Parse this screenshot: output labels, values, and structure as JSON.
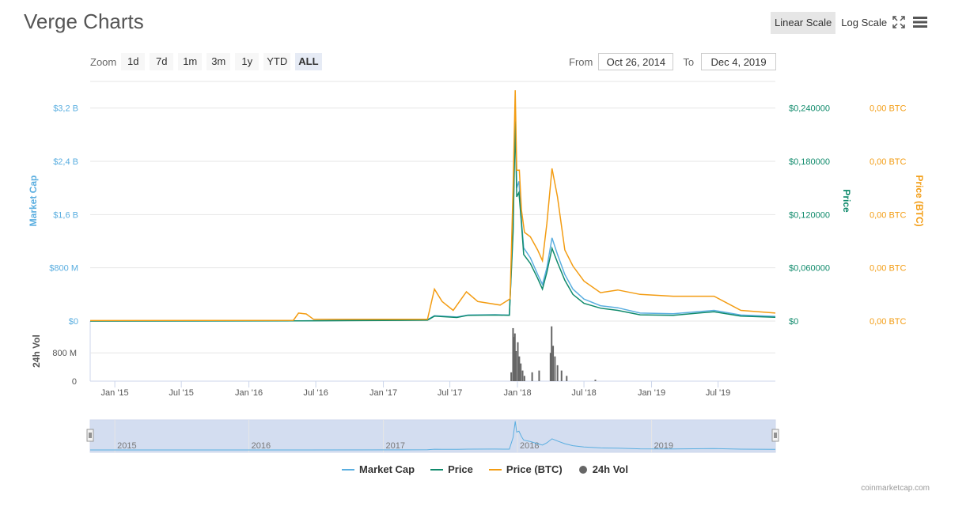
{
  "header": {
    "title": "Verge Charts",
    "linear_scale": "Linear Scale",
    "log_scale": "Log Scale"
  },
  "zoom": {
    "label": "Zoom",
    "buttons": [
      "1d",
      "7d",
      "1m",
      "3m",
      "1y",
      "YTD",
      "ALL"
    ],
    "active": "ALL"
  },
  "range": {
    "from_label": "From",
    "from_value": "Oct 26, 2014",
    "to_label": "To",
    "to_value": "Dec 4, 2019"
  },
  "colors": {
    "market_cap": "#5aaee0",
    "price": "#0f8a6b",
    "price_btc": "#f39c12",
    "volume": "#666666",
    "navigator_fill": "#d3ddf0"
  },
  "icons": {
    "fullscreen": "fullscreen-icon",
    "menu": "hamburger-menu-icon"
  },
  "chart_data": {
    "type": "line",
    "x_axis": {
      "ticks": [
        "Jan '15",
        "Jul '15",
        "Jan '16",
        "Jul '16",
        "Jan '17",
        "Jul '17",
        "Jan '18",
        "Jul '18",
        "Jan '19",
        "Jul '19"
      ],
      "range": [
        "2014-10-26",
        "2019-12-04"
      ]
    },
    "y_axes": {
      "market_cap": {
        "title": "Market Cap",
        "ticks": [
          "$0",
          "$800 M",
          "$1,6 B",
          "$2,4 B",
          "$3,2 B"
        ],
        "range": [
          0,
          3600000000
        ]
      },
      "price": {
        "title": "Price",
        "ticks": [
          "$0",
          "$0,060000",
          "$0,120000",
          "$0,180000",
          "$0,240000"
        ],
        "range": [
          0,
          0.27
        ]
      },
      "price_btc": {
        "title": "Price (BTC)",
        "ticks": [
          "0,00 BTC",
          "0,00 BTC",
          "0,00 BTC",
          "0,00 BTC",
          "0,00 BTC"
        ]
      },
      "volume": {
        "title": "24h Vol",
        "ticks": [
          "0",
          "800 M"
        ],
        "range": [
          0,
          1700000000
        ]
      }
    },
    "series": [
      {
        "name": "Market Cap",
        "key": "market_cap",
        "points": [
          [
            "2014-10-26",
            0
          ],
          [
            "2016-05-15",
            2000000
          ],
          [
            "2017-05-01",
            20000000
          ],
          [
            "2017-05-20",
            80000000
          ],
          [
            "2017-06-10",
            75000000
          ],
          [
            "2017-07-20",
            60000000
          ],
          [
            "2017-08-20",
            90000000
          ],
          [
            "2017-11-01",
            95000000
          ],
          [
            "2017-12-10",
            90000000
          ],
          [
            "2017-12-20",
            1400000000
          ],
          [
            "2017-12-26",
            3200000000
          ],
          [
            "2017-12-30",
            2000000000
          ],
          [
            "2018-01-05",
            2100000000
          ],
          [
            "2018-01-12",
            1500000000
          ],
          [
            "2018-01-18",
            1100000000
          ],
          [
            "2018-02-05",
            950000000
          ],
          [
            "2018-02-25",
            700000000
          ],
          [
            "2018-03-10",
            550000000
          ],
          [
            "2018-03-22",
            800000000
          ],
          [
            "2018-04-05",
            1250000000
          ],
          [
            "2018-04-20",
            1000000000
          ],
          [
            "2018-05-10",
            700000000
          ],
          [
            "2018-06-01",
            480000000
          ],
          [
            "2018-07-01",
            330000000
          ],
          [
            "2018-08-15",
            230000000
          ],
          [
            "2018-10-01",
            200000000
          ],
          [
            "2018-12-01",
            120000000
          ],
          [
            "2019-03-01",
            110000000
          ],
          [
            "2019-06-20",
            160000000
          ],
          [
            "2019-09-01",
            90000000
          ],
          [
            "2019-12-04",
            70000000
          ]
        ]
      },
      {
        "name": "Price",
        "key": "price",
        "points": [
          [
            "2014-10-26",
            0
          ],
          [
            "2016-05-15",
            0.0002
          ],
          [
            "2017-05-01",
            0.001
          ],
          [
            "2017-05-20",
            0.0055
          ],
          [
            "2017-06-10",
            0.005
          ],
          [
            "2017-07-20",
            0.004
          ],
          [
            "2017-08-20",
            0.0065
          ],
          [
            "2017-11-01",
            0.0068
          ],
          [
            "2017-12-10",
            0.0065
          ],
          [
            "2017-12-20",
            0.1
          ],
          [
            "2017-12-26",
            0.225
          ],
          [
            "2017-12-30",
            0.14
          ],
          [
            "2018-01-05",
            0.145
          ],
          [
            "2018-01-12",
            0.11
          ],
          [
            "2018-01-18",
            0.075
          ],
          [
            "2018-02-05",
            0.065
          ],
          [
            "2018-02-25",
            0.048
          ],
          [
            "2018-03-10",
            0.036
          ],
          [
            "2018-03-22",
            0.055
          ],
          [
            "2018-04-05",
            0.082
          ],
          [
            "2018-04-20",
            0.066
          ],
          [
            "2018-05-10",
            0.046
          ],
          [
            "2018-06-01",
            0.03
          ],
          [
            "2018-07-01",
            0.02
          ],
          [
            "2018-08-15",
            0.0145
          ],
          [
            "2018-10-01",
            0.012
          ],
          [
            "2018-12-01",
            0.007
          ],
          [
            "2019-03-01",
            0.0065
          ],
          [
            "2019-06-20",
            0.0105
          ],
          [
            "2019-09-01",
            0.0055
          ],
          [
            "2019-12-04",
            0.0042
          ]
        ]
      },
      {
        "name": "Price (BTC)",
        "key": "price_btc",
        "points": [
          [
            "2014-10-26",
            0.0005
          ],
          [
            "2016-05-01",
            0.0008
          ],
          [
            "2016-05-15",
            0.009
          ],
          [
            "2016-06-05",
            0.008
          ],
          [
            "2016-06-25",
            0.002
          ],
          [
            "2017-05-01",
            0.002
          ],
          [
            "2017-05-20",
            0.036
          ],
          [
            "2017-06-10",
            0.022
          ],
          [
            "2017-07-10",
            0.012
          ],
          [
            "2017-08-15",
            0.033
          ],
          [
            "2017-09-15",
            0.022
          ],
          [
            "2017-11-15",
            0.018
          ],
          [
            "2017-12-12",
            0.025
          ],
          [
            "2017-12-20",
            0.15
          ],
          [
            "2017-12-26",
            0.26
          ],
          [
            "2017-12-30",
            0.17
          ],
          [
            "2018-01-06",
            0.17
          ],
          [
            "2018-01-12",
            0.125
          ],
          [
            "2018-01-20",
            0.1
          ],
          [
            "2018-02-05",
            0.095
          ],
          [
            "2018-02-25",
            0.08
          ],
          [
            "2018-03-10",
            0.068
          ],
          [
            "2018-03-22",
            0.11
          ],
          [
            "2018-04-05",
            0.172
          ],
          [
            "2018-04-20",
            0.14
          ],
          [
            "2018-05-10",
            0.08
          ],
          [
            "2018-06-01",
            0.062
          ],
          [
            "2018-07-01",
            0.045
          ],
          [
            "2018-08-15",
            0.032
          ],
          [
            "2018-10-01",
            0.035
          ],
          [
            "2018-12-01",
            0.03
          ],
          [
            "2019-03-01",
            0.028
          ],
          [
            "2019-06-20",
            0.028
          ],
          [
            "2019-09-01",
            0.012
          ],
          [
            "2019-12-04",
            0.009
          ]
        ]
      },
      {
        "name": "24h Vol",
        "key": "volume",
        "type": "column",
        "points": [
          [
            "2017-12-15",
            250000000
          ],
          [
            "2017-12-20",
            1500000000
          ],
          [
            "2017-12-22",
            1250000000
          ],
          [
            "2017-12-25",
            1350000000
          ],
          [
            "2017-12-28",
            850000000
          ],
          [
            "2018-01-02",
            1100000000
          ],
          [
            "2018-01-06",
            700000000
          ],
          [
            "2018-01-10",
            500000000
          ],
          [
            "2018-01-15",
            300000000
          ],
          [
            "2018-01-20",
            150000000
          ],
          [
            "2018-02-10",
            250000000
          ],
          [
            "2018-03-01",
            300000000
          ],
          [
            "2018-04-01",
            800000000
          ],
          [
            "2018-04-04",
            1550000000
          ],
          [
            "2018-04-08",
            1000000000
          ],
          [
            "2018-04-13",
            700000000
          ],
          [
            "2018-04-20",
            450000000
          ],
          [
            "2018-05-01",
            300000000
          ],
          [
            "2018-05-15",
            150000000
          ],
          [
            "2018-08-01",
            40000000
          ]
        ]
      }
    ],
    "navigator": {
      "labels": [
        "2015",
        "2016",
        "2017",
        "2018",
        "2019"
      ]
    },
    "legend": [
      "Market Cap",
      "Price",
      "Price (BTC)",
      "24h Vol"
    ],
    "credits": "coinmarketcap.com"
  }
}
